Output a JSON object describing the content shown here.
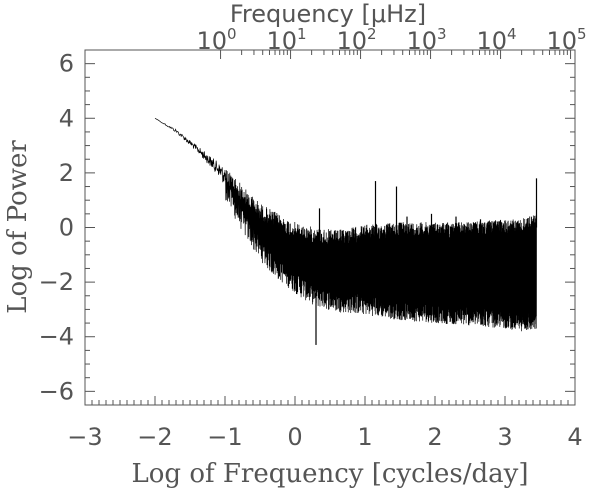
{
  "chart_data": {
    "type": "line",
    "xlabel": "Log of Frequency [cycles/day]",
    "ylabel": "Log of Power",
    "x2label": "Frequency [μHz]",
    "xlim": [
      -3,
      4
    ],
    "ylim": [
      -6.5,
      6.5
    ],
    "x_ticks": [
      "−3",
      "−2",
      "−1",
      "0",
      "1",
      "2",
      "3",
      "4"
    ],
    "y_ticks": [
      "−6",
      "−4",
      "−2",
      "0",
      "2",
      "4",
      "6"
    ],
    "x2_ticks": [
      {
        "base": "10",
        "exp": "0"
      },
      {
        "base": "10",
        "exp": "1"
      },
      {
        "base": "10",
        "exp": "2"
      },
      {
        "base": "10",
        "exp": "3"
      },
      {
        "base": "10",
        "exp": "4"
      },
      {
        "base": "10",
        "exp": "5"
      }
    ],
    "grid": false,
    "series": [
      {
        "color": "#000000",
        "envelope": {
          "x": [
            -2.0,
            -1.7,
            -1.4,
            -1.1,
            -0.9,
            -0.7,
            -0.5,
            -0.3,
            -0.1,
            0.1,
            0.3,
            0.6,
            1.0,
            1.5,
            2.0,
            2.5,
            3.0,
            3.2,
            3.45
          ],
          "upper": [
            4.0,
            3.6,
            3.0,
            2.4,
            2.0,
            1.4,
            0.9,
            0.6,
            0.3,
            0.1,
            0.0,
            -0.1,
            0.1,
            0.2,
            0.2,
            0.2,
            0.3,
            0.3,
            0.5
          ],
          "lower": [
            4.0,
            3.4,
            2.6,
            1.6,
            0.5,
            -0.4,
            -1.2,
            -1.8,
            -2.2,
            -2.6,
            -2.9,
            -3.1,
            -3.2,
            -3.4,
            -3.5,
            -3.6,
            -3.7,
            -3.8,
            -3.8
          ]
        },
        "spikes": [
          {
            "x": 0.35,
            "y": 0.7
          },
          {
            "x": 0.3,
            "y": -4.3
          },
          {
            "x": 1.15,
            "y": 1.7
          },
          {
            "x": 1.45,
            "y": 1.5
          },
          {
            "x": 1.6,
            "y": 0.4
          },
          {
            "x": 1.95,
            "y": 0.5
          },
          {
            "x": 2.3,
            "y": 0.4
          },
          {
            "x": 2.65,
            "y": 0.3
          },
          {
            "x": 3.45,
            "y": 1.8
          }
        ]
      }
    ]
  }
}
